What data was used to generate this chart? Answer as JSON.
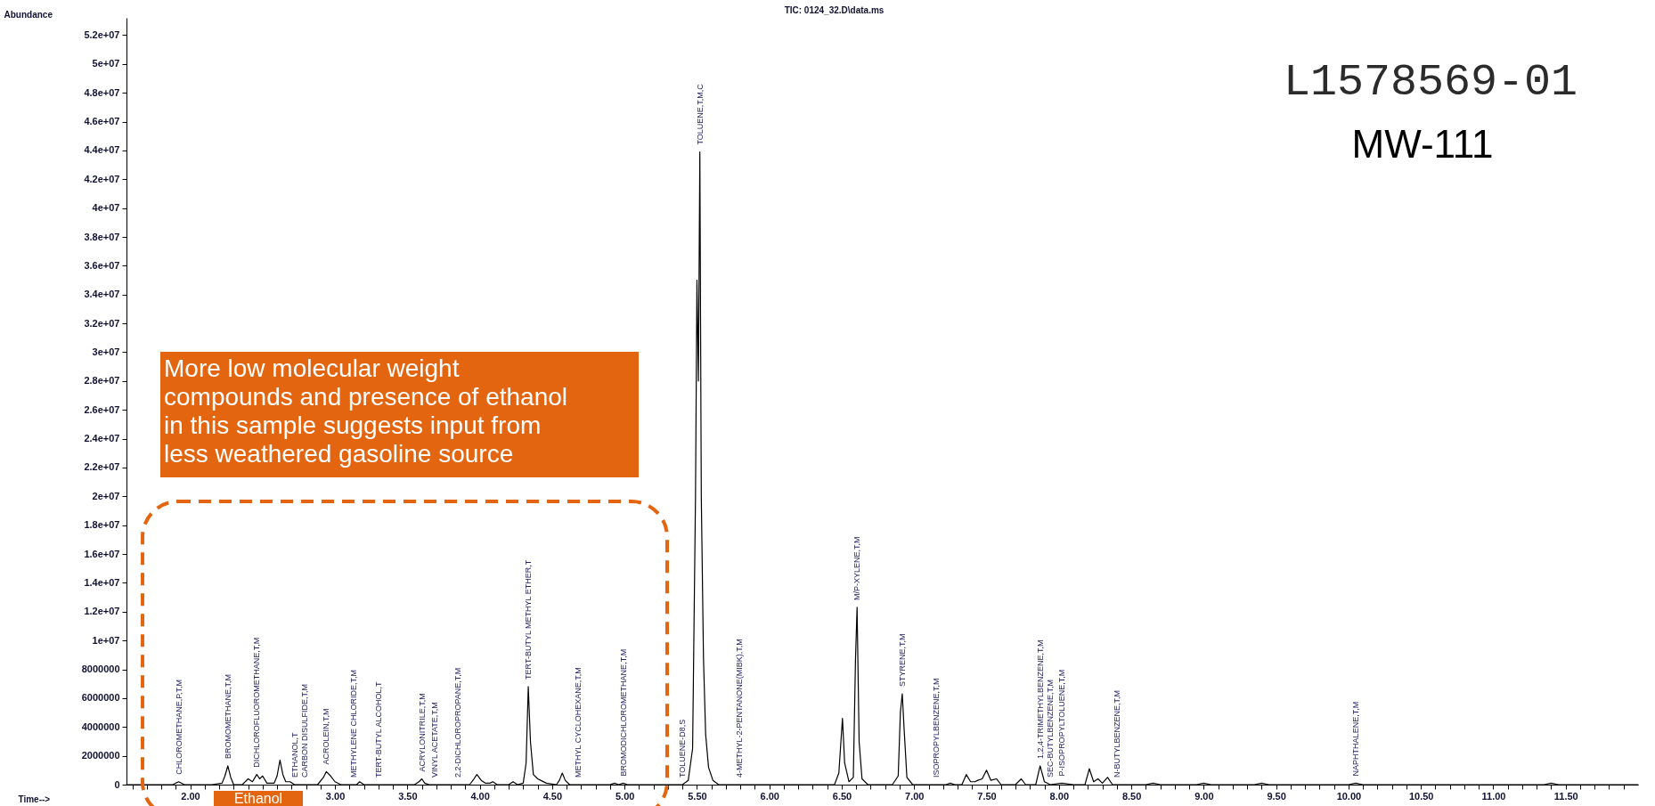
{
  "chart_data": {
    "type": "line",
    "title": "TIC: 0124_32.D\\data.ms",
    "xlabel": "Time-->",
    "ylabel": "Abundance",
    "line_style": "solid",
    "xlim": [
      1.56,
      12.0
    ],
    "ylim": [
      0,
      53200000
    ],
    "xticks": [
      {
        "value": 1.6,
        "label": null
      },
      {
        "value": 1.7,
        "label": null
      },
      {
        "value": 1.8,
        "label": null
      },
      {
        "value": 1.9,
        "label": null
      },
      {
        "value": 2,
        "label": "2.00"
      },
      {
        "value": 2.1,
        "label": null
      },
      {
        "value": 2.2,
        "label": null
      },
      {
        "value": 2.3,
        "label": null
      },
      {
        "value": 2.4,
        "label": null
      },
      {
        "value": 2.5,
        "label": null
      },
      {
        "value": 2.6,
        "label": null
      },
      {
        "value": 2.7,
        "label": null
      },
      {
        "value": 2.8,
        "label": null
      },
      {
        "value": 2.9,
        "label": null
      },
      {
        "value": 3,
        "label": "3.00"
      },
      {
        "value": 3.1,
        "label": null
      },
      {
        "value": 3.2,
        "label": null
      },
      {
        "value": 3.3,
        "label": null
      },
      {
        "value": 3.4,
        "label": null
      },
      {
        "value": 3.5,
        "label": "3.50"
      },
      {
        "value": 3.6,
        "label": null
      },
      {
        "value": 3.7,
        "label": null
      },
      {
        "value": 3.8,
        "label": null
      },
      {
        "value": 3.9,
        "label": null
      },
      {
        "value": 4,
        "label": "4.00"
      },
      {
        "value": 4.1,
        "label": null
      },
      {
        "value": 4.2,
        "label": null
      },
      {
        "value": 4.3,
        "label": null
      },
      {
        "value": 4.4,
        "label": null
      },
      {
        "value": 4.5,
        "label": "4.50"
      },
      {
        "value": 4.6,
        "label": null
      },
      {
        "value": 4.7,
        "label": null
      },
      {
        "value": 4.8,
        "label": null
      },
      {
        "value": 4.9,
        "label": null
      },
      {
        "value": 5,
        "label": "5.00"
      },
      {
        "value": 5.1,
        "label": null
      },
      {
        "value": 5.2,
        "label": null
      },
      {
        "value": 5.3,
        "label": null
      },
      {
        "value": 5.4,
        "label": null
      },
      {
        "value": 5.5,
        "label": "5.50"
      },
      {
        "value": 5.6,
        "label": null
      },
      {
        "value": 5.7,
        "label": null
      },
      {
        "value": 5.8,
        "label": null
      },
      {
        "value": 5.9,
        "label": null
      },
      {
        "value": 6,
        "label": "6.00"
      },
      {
        "value": 6.1,
        "label": null
      },
      {
        "value": 6.2,
        "label": null
      },
      {
        "value": 6.3,
        "label": null
      },
      {
        "value": 6.4,
        "label": null
      },
      {
        "value": 6.5,
        "label": "6.50"
      },
      {
        "value": 6.6,
        "label": null
      },
      {
        "value": 6.7,
        "label": null
      },
      {
        "value": 6.8,
        "label": null
      },
      {
        "value": 6.9,
        "label": null
      },
      {
        "value": 7,
        "label": "7.00"
      },
      {
        "value": 7.1,
        "label": null
      },
      {
        "value": 7.2,
        "label": null
      },
      {
        "value": 7.3,
        "label": null
      },
      {
        "value": 7.4,
        "label": null
      },
      {
        "value": 7.5,
        "label": "7.50"
      },
      {
        "value": 7.6,
        "label": null
      },
      {
        "value": 7.7,
        "label": null
      },
      {
        "value": 7.8,
        "label": null
      },
      {
        "value": 7.9,
        "label": null
      },
      {
        "value": 8,
        "label": "8.00"
      },
      {
        "value": 8.1,
        "label": null
      },
      {
        "value": 8.2,
        "label": null
      },
      {
        "value": 8.3,
        "label": null
      },
      {
        "value": 8.4,
        "label": null
      },
      {
        "value": 8.5,
        "label": "8.50"
      },
      {
        "value": 8.6,
        "label": null
      },
      {
        "value": 8.7,
        "label": null
      },
      {
        "value": 8.8,
        "label": null
      },
      {
        "value": 8.9,
        "label": null
      },
      {
        "value": 9,
        "label": "9.00"
      },
      {
        "value": 9.1,
        "label": null
      },
      {
        "value": 9.2,
        "label": null
      },
      {
        "value": 9.3,
        "label": null
      },
      {
        "value": 9.4,
        "label": null
      },
      {
        "value": 9.5,
        "label": "9.50"
      },
      {
        "value": 9.6,
        "label": null
      },
      {
        "value": 9.7,
        "label": null
      },
      {
        "value": 9.8,
        "label": null
      },
      {
        "value": 9.9,
        "label": null
      },
      {
        "value": 10,
        "label": "10.00"
      },
      {
        "value": 10.1,
        "label": null
      },
      {
        "value": 10.2,
        "label": null
      },
      {
        "value": 10.3,
        "label": null
      },
      {
        "value": 10.4,
        "label": null
      },
      {
        "value": 10.5,
        "label": "10.50"
      },
      {
        "value": 10.6,
        "label": null
      },
      {
        "value": 10.7,
        "label": null
      },
      {
        "value": 10.8,
        "label": null
      },
      {
        "value": 10.9,
        "label": null
      },
      {
        "value": 11,
        "label": "11.00"
      },
      {
        "value": 11.1,
        "label": null
      },
      {
        "value": 11.2,
        "label": null
      },
      {
        "value": 11.3,
        "label": null
      },
      {
        "value": 11.4,
        "label": null
      },
      {
        "value": 11.5,
        "label": "11.50"
      },
      {
        "value": 11.6,
        "label": null
      },
      {
        "value": 11.7,
        "label": null
      },
      {
        "value": 11.8,
        "label": null
      },
      {
        "value": 11.9,
        "label": null
      }
    ],
    "yticks": [
      0,
      2000000,
      4000000,
      6000000,
      8000000,
      {
        "value": 10000000,
        "label": "1e+07"
      },
      {
        "value": 12000000,
        "label": "1.2e+07"
      },
      {
        "value": 14000000,
        "label": "1.4e+07"
      },
      {
        "value": 16000000,
        "label": "1.6e+07"
      },
      {
        "value": 18000000,
        "label": "1.8e+07"
      },
      {
        "value": 20000000,
        "label": "2e+07"
      },
      {
        "value": 22000000,
        "label": "2.2e+07"
      },
      {
        "value": 24000000,
        "label": "2.4e+07"
      },
      {
        "value": 26000000,
        "label": "2.6e+07"
      },
      {
        "value": 28000000,
        "label": "2.8e+07"
      },
      {
        "value": 30000000,
        "label": "3e+07"
      },
      {
        "value": 32000000,
        "label": "3.2e+07"
      },
      {
        "value": 34000000,
        "label": "3.4e+07"
      },
      {
        "value": 36000000,
        "label": "3.6e+07"
      },
      {
        "value": 38000000,
        "label": "3.8e+07"
      },
      {
        "value": 40000000,
        "label": "4e+07"
      },
      {
        "value": 42000000,
        "label": "4.2e+07"
      },
      {
        "value": 44000000,
        "label": "4.4e+07"
      },
      {
        "value": 46000000,
        "label": "4.6e+07"
      },
      {
        "value": 48000000,
        "label": "4.8e+07"
      },
      {
        "value": 50000000,
        "label": "5e+07"
      },
      {
        "value": 52000000,
        "label": "5.2e+07"
      }
    ],
    "x": [
      1.56,
      1.7,
      1.88,
      1.92,
      1.96,
      2.15,
      2.22,
      2.24,
      2.26,
      2.28,
      2.3,
      2.36,
      2.4,
      2.43,
      2.46,
      2.48,
      2.5,
      2.53,
      2.58,
      2.6,
      2.62,
      2.64,
      2.66,
      2.69,
      2.72,
      2.88,
      2.92,
      2.94,
      2.97,
      3.0,
      3.04,
      3.15,
      3.17,
      3.2,
      3.55,
      3.58,
      3.6,
      3.62,
      3.65,
      3.93,
      3.96,
      3.98,
      4.01,
      4.04,
      4.07,
      4.09,
      4.12,
      4.2,
      4.23,
      4.26,
      4.3,
      4.32,
      4.335,
      4.35,
      4.37,
      4.4,
      4.42,
      4.46,
      4.53,
      4.55,
      4.57,
      4.59,
      4.62,
      4.9,
      4.93,
      4.96,
      4.99,
      5.02,
      5.4,
      5.44,
      5.47,
      5.49,
      5.5,
      5.51,
      5.52,
      5.53,
      5.545,
      5.56,
      5.58,
      5.61,
      5.65,
      6.0,
      6.45,
      6.48,
      6.505,
      6.52,
      6.55,
      6.58,
      6.595,
      6.606,
      6.62,
      6.64,
      6.68,
      6.85,
      6.89,
      6.905,
      6.918,
      6.93,
      6.95,
      6.99,
      7.22,
      7.25,
      7.28,
      7.33,
      7.36,
      7.39,
      7.42,
      7.44,
      7.47,
      7.5,
      7.53,
      7.57,
      7.6,
      7.7,
      7.74,
      7.77,
      7.84,
      7.87,
      7.9,
      7.94,
      8.02,
      8.1,
      8.18,
      8.21,
      8.24,
      8.27,
      8.3,
      8.336,
      8.37,
      8.6,
      8.65,
      8.7,
      8.95,
      9.0,
      9.05,
      9.35,
      9.4,
      9.45,
      10.0,
      10.05,
      10.1,
      11.35,
      11.4,
      11.45,
      12.0
    ],
    "series": [
      {
        "color": "#000000",
        "values": [
          0,
          0,
          0,
          200000,
          0,
          0,
          100000,
          600000,
          1300000,
          500000,
          0,
          0,
          400000,
          200000,
          700000,
          400000,
          600000,
          100000,
          100000,
          600000,
          1700000,
          700000,
          200000,
          200000,
          0,
          0,
          500000,
          900000,
          600000,
          200000,
          0,
          0,
          200000,
          0,
          0,
          200000,
          400000,
          100000,
          0,
          0,
          400000,
          700000,
          300000,
          100000,
          100000,
          200000,
          0,
          0,
          200000,
          0,
          100000,
          1500000,
          6800000,
          3000000,
          700000,
          400000,
          300000,
          100000,
          0,
          300000,
          800000,
          300000,
          0,
          0,
          100000,
          0,
          100000,
          0,
          0,
          300000,
          2500000,
          20000000,
          35000000,
          28000000,
          43900000,
          20000000,
          8800000,
          3500000,
          1200000,
          300000,
          0,
          0,
          0,
          800000,
          4600000,
          1500000,
          200000,
          500000,
          8700000,
          12300000,
          3000000,
          400000,
          0,
          0,
          600000,
          5000000,
          6300000,
          4000000,
          500000,
          0,
          0,
          100000,
          0,
          0,
          700000,
          200000,
          200000,
          300000,
          400000,
          1000000,
          300000,
          400000,
          0,
          0,
          400000,
          0,
          0,
          1300000,
          200000,
          0,
          100000,
          0,
          0,
          1100000,
          200000,
          400000,
          100000,
          500000,
          0,
          0,
          100000,
          0,
          0,
          100000,
          0,
          0,
          100000,
          0,
          0,
          100000,
          0,
          0,
          100000,
          0,
          0
        ]
      }
    ],
    "annotations": [
      "L1578569-01",
      "MW-111",
      "More low molecular weight compounds and presence of ethanol in this sample suggests input from less weathered gasoline source",
      "Ethanol",
      {
        "text": "CHLOROMETHANE,P,T,M",
        "x": 1.92,
        "y": 200000
      },
      {
        "text": "BROMOMETHANE,T,M",
        "x": 2.26,
        "y": 1300000
      },
      {
        "text": "DICHLOROFLUOROMETHANE,T,M",
        "x": 2.46,
        "y": 700000
      },
      {
        "text": "ETHANOL,T",
        "x": 2.72,
        "y": 0
      },
      {
        "text": "CARBON DISULFIDE,T,M",
        "x": 2.79,
        "y": 0
      },
      {
        "text": "ACROLEIN,T,M",
        "x": 2.94,
        "y": 900000
      },
      {
        "text": "METHYLENE CHLORIDE,T,M",
        "x": 3.13,
        "y": 0
      },
      {
        "text": "TERT-BUTYL ALCOHOL,T",
        "x": 3.3,
        "y": 0
      },
      {
        "text": "ACRYLONITRILE,T,M",
        "x": 3.6,
        "y": 400000
      },
      {
        "text": "VINYL ACETATE,T,M",
        "x": 3.69,
        "y": 0
      },
      {
        "text": "2,2-DICHLOROPROPANE,T,M",
        "x": 3.85,
        "y": 0
      },
      {
        "text": "TERT-BUTYL METHYL ETHER,T",
        "x": 4.335,
        "y": 6800000
      },
      {
        "text": "METHYL CYCLOHEXANE,T,M",
        "x": 4.68,
        "y": 0
      },
      {
        "text": "BROMODICHLOROMETHANE,T,M",
        "x": 4.99,
        "y": 100000
      },
      {
        "text": "TOLUENE-D8,S",
        "x": 5.4,
        "y": 0
      },
      {
        "text": "TOLUENE,T,M,C",
        "x": 5.52,
        "y": 43900000
      },
      {
        "text": "4-METHYL-2-PENTANONE(MIBK),T,M",
        "x": 5.79,
        "y": 0
      },
      {
        "text": "M/P-XYLENE,T,M",
        "x": 6.606,
        "y": 12300000
      },
      {
        "text": "STYRENE,T,M",
        "x": 6.918,
        "y": 6300000
      },
      {
        "text": "ISOPROPYLBENZENE,T,M",
        "x": 7.15,
        "y": 0
      },
      {
        "text": "1,2,4-TRIMETHYLBENZENE,T,M",
        "x": 7.87,
        "y": 1300000
      },
      {
        "text": "SEC-BUTYLBENZENE,T,M",
        "x": 7.94,
        "y": 0
      },
      {
        "text": "P-ISOPROPYLTOLUENE,T,M",
        "x": 8.02,
        "y": 100000
      },
      {
        "text": "N-BUTYLBENZENE,T,M",
        "x": 8.4,
        "y": 0
      },
      {
        "text": "NAPHTHALENE,T,M",
        "x": 10.05,
        "y": 100000
      }
    ]
  }
}
